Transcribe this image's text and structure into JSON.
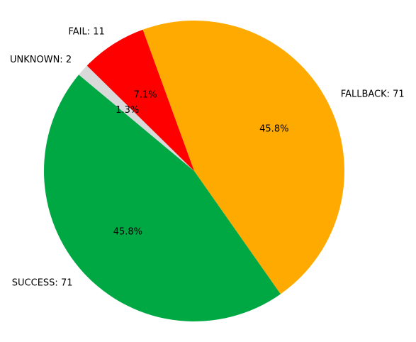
{
  "chart_data": {
    "type": "pie",
    "slices": [
      {
        "name": "FALLBACK",
        "value": 71,
        "label": "FALLBACK: 71",
        "percent_label": "45.8%",
        "color": "#FFAA00"
      },
      {
        "name": "SUCCESS",
        "value": 71,
        "label": "SUCCESS: 71",
        "percent_label": "45.8%",
        "color": "#00A844"
      },
      {
        "name": "UNKNOWN",
        "value": 2,
        "label": "UNKNOWN: 2",
        "percent_label": "1.3%",
        "color": "#D9D9D9"
      },
      {
        "name": "FAIL",
        "value": 11,
        "label": "FAIL: 11",
        "percent_label": "7.1%",
        "color": "#FF0000"
      }
    ],
    "start_angle_deg": 110,
    "direction": "clockwise",
    "title": "",
    "legend": "none"
  }
}
